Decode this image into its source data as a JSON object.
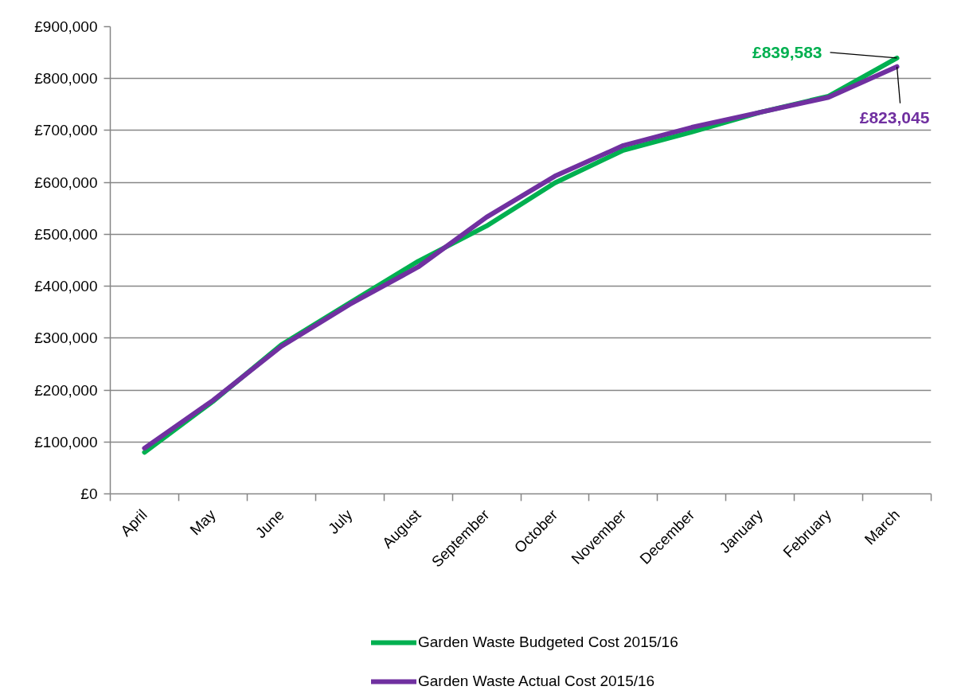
{
  "chart_data": {
    "type": "line",
    "categories": [
      "April",
      "May",
      "June",
      "July",
      "August",
      "September",
      "October",
      "November",
      "December",
      "January",
      "February",
      "March"
    ],
    "series": [
      {
        "name": "Garden Waste Budgeted Cost 2015/16",
        "color": "#00b050",
        "values": [
          80000,
          178000,
          287000,
          368000,
          448000,
          516000,
          599000,
          662000,
          697000,
          735000,
          766000,
          839583
        ],
        "value_labels": [
          null,
          null,
          null,
          null,
          null,
          null,
          null,
          null,
          null,
          null,
          null,
          "£839,583"
        ]
      },
      {
        "name": "Garden Waste Actual Cost 2015/16",
        "color": "#7030a0",
        "values": [
          88000,
          180000,
          284000,
          365000,
          437000,
          533000,
          612000,
          671000,
          706000,
          735000,
          764000,
          823045
        ],
        "value_labels": [
          null,
          null,
          null,
          null,
          null,
          null,
          null,
          null,
          null,
          null,
          null,
          "£823,045"
        ]
      }
    ],
    "ylim": [
      0,
      900000
    ],
    "yticks": [
      {
        "value": 0,
        "label": "£0"
      },
      {
        "value": 100000,
        "label": "£100,000"
      },
      {
        "value": 200000,
        "label": "£200,000"
      },
      {
        "value": 300000,
        "label": "£300,000"
      },
      {
        "value": 400000,
        "label": "£400,000"
      },
      {
        "value": 500000,
        "label": "£500,000"
      },
      {
        "value": 600000,
        "label": "£600,000"
      },
      {
        "value": 700000,
        "label": "£700,000"
      },
      {
        "value": 800000,
        "label": "£800,000"
      },
      {
        "value": 900000,
        "label": "£900,000"
      }
    ],
    "grid": "y",
    "legend": "bottom",
    "line_style": "solid"
  }
}
